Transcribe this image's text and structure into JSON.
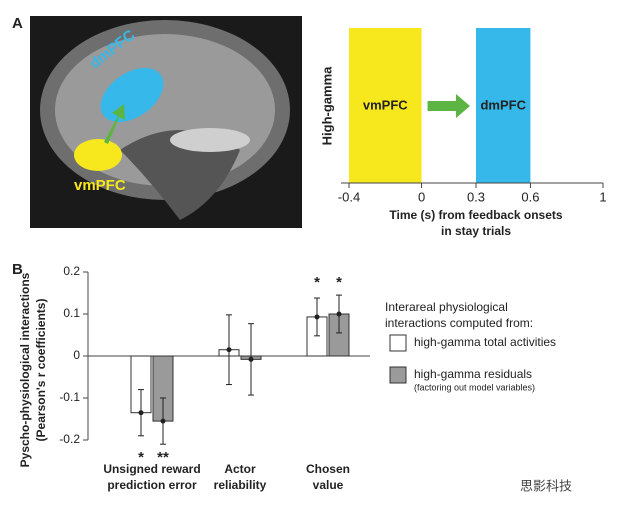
{
  "panel_a": {
    "label": "A",
    "image_labels": [
      "dmPFC",
      "vmPFC"
    ]
  },
  "panel_b": {
    "label": "B"
  },
  "watermark": "思影科技",
  "chart_data": [
    {
      "type": "timeline",
      "ylabel": "High-gamma",
      "xlabel": [
        "Time (s) from feedback onsets",
        "in stay trials"
      ],
      "xlim": [
        -0.4,
        1
      ],
      "xticks": [
        -0.4,
        0,
        0.3,
        0.6,
        1
      ],
      "spans": [
        {
          "label": "vmPFC",
          "start": -0.4,
          "end": 0,
          "color": "#f7e81d"
        },
        {
          "label": "dmPFC",
          "start": 0.3,
          "end": 0.6,
          "color": "#36b8ea"
        }
      ],
      "arrow_color": "#5cb543"
    },
    {
      "type": "bar",
      "ylabel": [
        "Pyscho-physiological interactions",
        "(Pearson's r coefficients)"
      ],
      "categories": [
        [
          "Unsigned reward",
          "prediction error"
        ],
        [
          "Actor",
          "reliability"
        ],
        [
          "Chosen",
          "value"
        ]
      ],
      "ylim": [
        -0.2,
        0.2
      ],
      "yticks": [
        -0.2,
        -0.1,
        0,
        0.1,
        0.2
      ],
      "legend_title": [
        "Interareal physiological",
        "interactions computed from:"
      ],
      "series": [
        {
          "name": "high-gamma total activities",
          "color": "#ffffff",
          "values": [
            -0.135,
            0.015,
            0.093
          ],
          "errors": [
            0.055,
            0.083,
            0.045
          ],
          "significance": [
            "*",
            null,
            "*"
          ]
        },
        {
          "name": "high-gamma residuals",
          "note": "(factoring out model variables)",
          "color": "#9a9a9a",
          "values": [
            -0.155,
            -0.008,
            0.1
          ],
          "errors": [
            0.055,
            0.085,
            0.045
          ],
          "significance": [
            "**",
            null,
            "*"
          ]
        }
      ]
    }
  ]
}
